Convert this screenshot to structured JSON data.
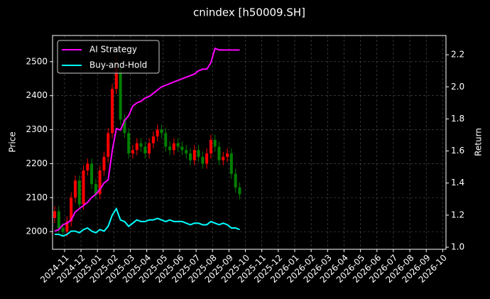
{
  "chart_data": {
    "type": "candlestick",
    "title": "cnindex [h50009.SH]",
    "ylabel": "Price",
    "y2label": "Return",
    "x": [
      -0.6,
      -0.35,
      -0.1,
      0.15,
      0.4,
      0.65,
      0.9,
      1.15,
      1.4,
      1.65,
      1.9,
      2.15,
      2.4,
      2.65,
      2.9,
      3.15,
      3.4,
      3.65,
      3.9,
      4.15,
      4.4,
      4.65,
      4.9,
      5.15,
      5.4,
      5.65,
      5.9,
      6.15,
      6.4,
      6.65,
      6.9,
      7.15,
      7.4,
      7.65,
      7.9,
      8.15,
      8.4,
      8.65,
      8.9,
      9.15,
      9.4,
      9.65,
      9.9,
      10.15,
      10.4,
      10.65
    ],
    "open": [
      2040,
      2060,
      2010,
      2000,
      2030,
      2100,
      2150,
      2080,
      2180,
      2200,
      2140,
      2110,
      2180,
      2220,
      2290,
      2420,
      2480,
      2330,
      2290,
      2230,
      2240,
      2260,
      2250,
      2230,
      2260,
      2280,
      2300,
      2290,
      2250,
      2240,
      2260,
      2250,
      2240,
      2230,
      2210,
      2240,
      2220,
      2200,
      2230,
      2270,
      2250,
      2210,
      2220,
      2230,
      2170,
      2130
    ],
    "high": [
      2075,
      2075,
      2025,
      2045,
      2115,
      2165,
      2165,
      2195,
      2215,
      2215,
      2155,
      2195,
      2235,
      2305,
      2435,
      2520,
      2495,
      2345,
      2305,
      2255,
      2275,
      2275,
      2265,
      2275,
      2295,
      2315,
      2315,
      2305,
      2265,
      2275,
      2275,
      2265,
      2255,
      2245,
      2255,
      2255,
      2235,
      2245,
      2285,
      2285,
      2265,
      2235,
      2245,
      2245,
      2185,
      2145
    ],
    "low": [
      2025,
      1995,
      1985,
      1985,
      2015,
      2085,
      2065,
      2065,
      2165,
      2125,
      2095,
      2095,
      2165,
      2205,
      2275,
      2405,
      2315,
      2275,
      2215,
      2215,
      2225,
      2235,
      2215,
      2215,
      2245,
      2265,
      2275,
      2235,
      2225,
      2225,
      2235,
      2225,
      2215,
      2195,
      2195,
      2205,
      2185,
      2185,
      2215,
      2235,
      2195,
      2195,
      2205,
      2155,
      2115,
      2095
    ],
    "close": [
      2060,
      2010,
      2000,
      2030,
      2100,
      2150,
      2080,
      2180,
      2200,
      2140,
      2110,
      2180,
      2220,
      2290,
      2420,
      2480,
      2330,
      2290,
      2230,
      2240,
      2260,
      2250,
      2230,
      2260,
      2280,
      2300,
      2290,
      2250,
      2240,
      2260,
      2250,
      2240,
      2230,
      2210,
      2240,
      2220,
      2200,
      2230,
      2270,
      2250,
      2210,
      2220,
      2230,
      2170,
      2130,
      2110
    ],
    "up_color": "#ff0000",
    "down_color": "#008000",
    "series": [
      {
        "name": "AI Strategy",
        "color": "#ff00ff",
        "axis": "y2",
        "values": [
          1.1,
          1.11,
          1.14,
          1.15,
          1.17,
          1.22,
          1.24,
          1.26,
          1.28,
          1.31,
          1.33,
          1.36,
          1.4,
          1.42,
          1.6,
          1.74,
          1.73,
          1.79,
          1.82,
          1.88,
          1.9,
          1.91,
          1.93,
          1.94,
          1.96,
          1.98,
          2.0,
          2.01,
          2.02,
          2.03,
          2.04,
          2.05,
          2.06,
          2.07,
          2.08,
          2.1,
          2.11,
          2.11,
          2.15,
          2.24,
          2.23,
          2.23,
          2.23,
          2.23,
          2.23,
          2.23
        ]
      },
      {
        "name": "Buy-and-Hold",
        "color": "#00ffff",
        "axis": "y2",
        "values": [
          1.08,
          1.08,
          1.07,
          1.08,
          1.1,
          1.1,
          1.09,
          1.11,
          1.12,
          1.1,
          1.09,
          1.11,
          1.1,
          1.13,
          1.2,
          1.24,
          1.17,
          1.16,
          1.13,
          1.15,
          1.17,
          1.16,
          1.16,
          1.17,
          1.17,
          1.18,
          1.17,
          1.16,
          1.17,
          1.16,
          1.16,
          1.16,
          1.15,
          1.14,
          1.15,
          1.15,
          1.14,
          1.14,
          1.16,
          1.15,
          1.14,
          1.15,
          1.14,
          1.12,
          1.12,
          1.11
        ]
      }
    ],
    "xlim": [
      -0.73,
      23.2
    ],
    "xticks": [
      {
        "value": 0,
        "label": "2024-11"
      },
      {
        "value": 1,
        "label": "2024-12"
      },
      {
        "value": 2,
        "label": "2025-01"
      },
      {
        "value": 3,
        "label": "2025-02"
      },
      {
        "value": 4,
        "label": "2025-03"
      },
      {
        "value": 5,
        "label": "2025-04"
      },
      {
        "value": 6,
        "label": "2025-05"
      },
      {
        "value": 7,
        "label": "2025-06"
      },
      {
        "value": 8,
        "label": "2025-07"
      },
      {
        "value": 9,
        "label": "2025-08"
      },
      {
        "value": 10,
        "label": "2025-09"
      },
      {
        "value": 11,
        "label": "2025-10"
      },
      {
        "value": 12,
        "label": "2025-11"
      },
      {
        "value": 13,
        "label": "2025-12"
      },
      {
        "value": 14,
        "label": "2026-01"
      },
      {
        "value": 15,
        "label": "2026-02"
      },
      {
        "value": 16,
        "label": "2026-03"
      },
      {
        "value": 17,
        "label": "2026-04"
      },
      {
        "value": 18,
        "label": "2026-05"
      },
      {
        "value": 19,
        "label": "2026-06"
      },
      {
        "value": 20,
        "label": "2026-07"
      },
      {
        "value": 21,
        "label": "2026-08"
      },
      {
        "value": 22,
        "label": "2026-09"
      },
      {
        "value": 23,
        "label": "2026-10"
      }
    ],
    "ylim": [
      1948,
      2577
    ],
    "yticks": [
      2000,
      2100,
      2200,
      2300,
      2400,
      2500
    ],
    "y2lim": [
      0.987,
      2.32
    ],
    "y2ticks": [
      {
        "value": 1.0,
        "label": "1.0"
      },
      1.2,
      1.4,
      1.6,
      1.8,
      {
        "value": 2.0,
        "label": "2.0"
      },
      2.2
    ],
    "grid": true,
    "legend": "upper left"
  }
}
